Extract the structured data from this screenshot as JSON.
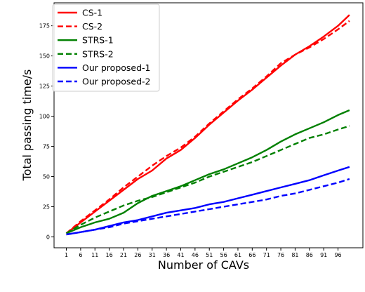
{
  "chart_data": {
    "type": "line",
    "title": "",
    "xlabel": "Number of CAVs",
    "ylabel": "Total passing time/s",
    "xlim": [
      1,
      100
    ],
    "ylim": [
      0,
      185
    ],
    "x_ticks": [
      1,
      6,
      11,
      16,
      21,
      26,
      31,
      36,
      41,
      46,
      51,
      56,
      61,
      66,
      71,
      76,
      81,
      86,
      91,
      96
    ],
    "y_ticks": [
      0,
      25,
      50,
      75,
      100,
      125,
      150,
      175
    ],
    "grid": false,
    "legend_position": "upper-left",
    "series": [
      {
        "name": "CS-1",
        "color": "#ff0000",
        "dash": "solid",
        "x": [
          1,
          6,
          11,
          16,
          21,
          26,
          31,
          36,
          41,
          46,
          51,
          56,
          61,
          66,
          71,
          76,
          81,
          86,
          91,
          96,
          100
        ],
        "y": [
          3,
          12,
          21,
          30,
          39,
          48,
          55,
          65,
          72,
          82,
          93,
          103,
          113,
          122,
          132,
          142,
          151,
          158,
          166,
          175,
          184
        ]
      },
      {
        "name": "CS-2",
        "color": "#ff0000",
        "dash": "dashed",
        "x": [
          1,
          6,
          11,
          16,
          21,
          26,
          31,
          36,
          41,
          46,
          51,
          56,
          61,
          66,
          71,
          76,
          81,
          86,
          91,
          96,
          100
        ],
        "y": [
          3,
          13,
          22,
          31,
          41,
          50,
          59,
          67,
          74,
          83,
          94,
          104,
          114,
          123,
          133,
          144,
          151,
          157,
          164,
          172,
          179
        ]
      },
      {
        "name": "STRS-1",
        "color": "#008000",
        "dash": "solid",
        "x": [
          1,
          6,
          11,
          16,
          21,
          26,
          31,
          36,
          41,
          46,
          51,
          56,
          61,
          66,
          71,
          76,
          81,
          86,
          91,
          96,
          100
        ],
        "y": [
          3,
          8,
          12,
          15,
          20,
          28,
          34,
          38,
          42,
          47,
          52,
          56,
          61,
          66,
          72,
          79,
          85,
          90,
          95,
          101,
          105
        ]
      },
      {
        "name": "STRS-2",
        "color": "#008000",
        "dash": "dashed",
        "x": [
          1,
          6,
          11,
          16,
          21,
          26,
          31,
          36,
          41,
          46,
          51,
          56,
          61,
          66,
          71,
          76,
          81,
          86,
          91,
          96,
          100
        ],
        "y": [
          3,
          10,
          16,
          21,
          26,
          30,
          33,
          37,
          41,
          45,
          50,
          54,
          58,
          62,
          67,
          72,
          77,
          82,
          85,
          89,
          92
        ]
      },
      {
        "name": "Our proposed-1",
        "color": "#0000ff",
        "dash": "solid",
        "x": [
          1,
          6,
          11,
          16,
          21,
          26,
          31,
          36,
          41,
          46,
          51,
          56,
          61,
          66,
          71,
          76,
          81,
          86,
          91,
          96,
          100
        ],
        "y": [
          2,
          4,
          6,
          9,
          12,
          14,
          17,
          20,
          22,
          24,
          27,
          29,
          32,
          35,
          38,
          41,
          44,
          47,
          51,
          55,
          58
        ]
      },
      {
        "name": "Our proposed-2",
        "color": "#0000ff",
        "dash": "dashed",
        "x": [
          1,
          6,
          11,
          16,
          21,
          26,
          31,
          36,
          41,
          46,
          51,
          56,
          61,
          66,
          71,
          76,
          81,
          86,
          91,
          96,
          100
        ],
        "y": [
          2,
          4,
          6,
          8,
          11,
          13,
          15,
          17,
          19,
          21,
          23,
          25,
          27,
          29,
          31,
          34,
          36,
          39,
          42,
          45,
          48
        ]
      }
    ]
  }
}
